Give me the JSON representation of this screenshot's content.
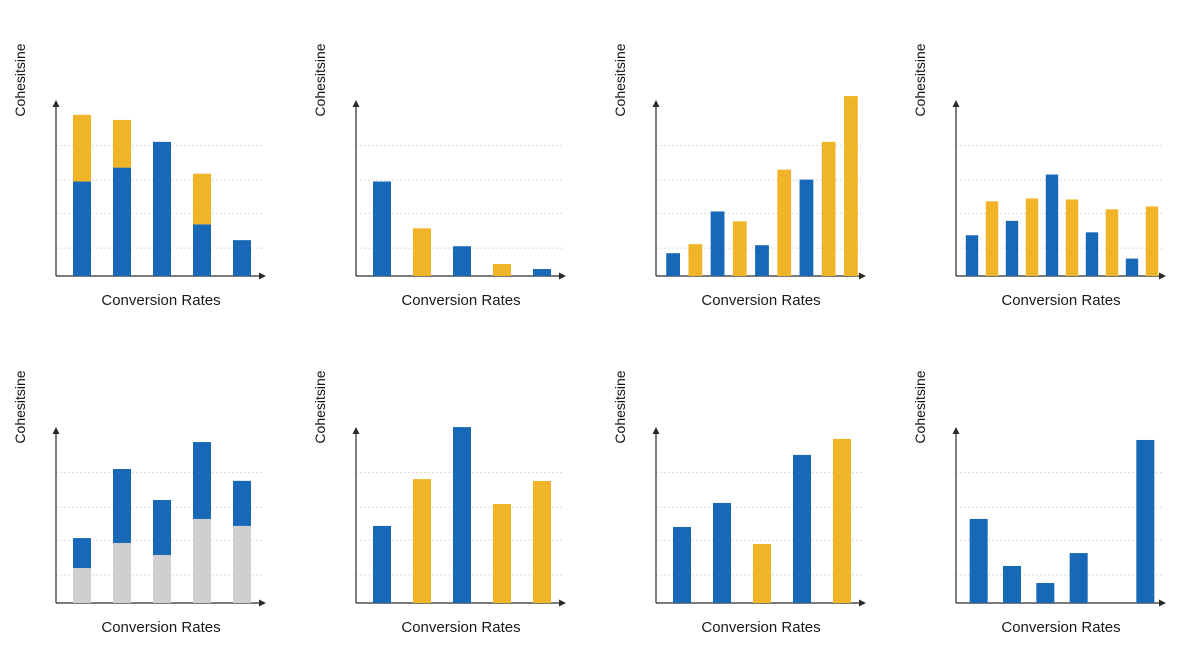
{
  "colors": {
    "blue": "#1768b7",
    "gold": "#f0b429",
    "gray": "#cfcfcf",
    "grid": "#dcdcdc",
    "axis": "#2b2b2b"
  },
  "chart_data": [
    {
      "type": "bar",
      "stacked": true,
      "xlabel": "Conversion Rates",
      "ylabel": "Cohesitsine",
      "ylim": [
        0,
        100
      ],
      "grid": true,
      "series": [
        {
          "color": "blue",
          "values": [
            54.3,
            62.3,
            77.1,
            29.7,
            20.6
          ]
        },
        {
          "color": "gold",
          "values": [
            38.3,
            27.4,
            0,
            29.1,
            0
          ]
        }
      ]
    },
    {
      "type": "bar",
      "xlabel": "Conversion Rates",
      "ylabel": "Cohesitsine",
      "ylim": [
        0,
        100
      ],
      "grid": true,
      "values": [
        54.3,
        27.4,
        17.1,
        6.9,
        4.0
      ],
      "colors": [
        "blue",
        "gold",
        "blue",
        "gold",
        "blue"
      ]
    },
    {
      "type": "bar",
      "xlabel": "Conversion Rates",
      "ylabel": "Cohesitsine",
      "ylim": [
        0,
        100
      ],
      "grid": true,
      "values": [
        13.1,
        18.3,
        37.1,
        31.4,
        17.7,
        61.1,
        55.4,
        77.1,
        103.4
      ],
      "colors": [
        "blue",
        "gold",
        "blue",
        "gold",
        "blue",
        "gold",
        "blue",
        "gold",
        "gold"
      ]
    },
    {
      "type": "bar",
      "xlabel": "Conversion Rates",
      "ylabel": "Cohesitsine",
      "ylim": [
        0,
        100
      ],
      "grid": true,
      "values": [
        23.4,
        42.9,
        31.7,
        44.6,
        58.3,
        44.0,
        25.1,
        38.3,
        10.0,
        40.0
      ],
      "colors": [
        "blue",
        "gold",
        "blue",
        "gold",
        "blue",
        "gold",
        "blue",
        "gold",
        "blue",
        "gold"
      ]
    },
    {
      "type": "bar",
      "stacked": true,
      "xlabel": "Conversion Rates",
      "ylabel": "Cohesitsine",
      "ylim": [
        0,
        100
      ],
      "grid": true,
      "series": [
        {
          "color": "gray",
          "values": [
            20.1,
            34.5,
            27.6,
            48.3,
            44.3
          ]
        },
        {
          "color": "blue",
          "values": [
            17.2,
            42.5,
            31.6,
            44.2,
            25.9
          ]
        }
      ]
    },
    {
      "type": "bar",
      "xlabel": "Conversion Rates",
      "ylabel": "Cohesitsine",
      "ylim": [
        0,
        100
      ],
      "grid": true,
      "values": [
        44.3,
        71.2,
        101.1,
        56.9,
        70.1
      ],
      "colors": [
        "blue",
        "gold",
        "blue",
        "gold",
        "gold"
      ]
    },
    {
      "type": "bar",
      "xlabel": "Conversion Rates",
      "ylabel": "Cohesitsine",
      "ylim": [
        0,
        100
      ],
      "grid": true,
      "values": [
        43.7,
        57.5,
        33.9,
        85.1,
        94.3
      ],
      "colors": [
        "blue",
        "blue",
        "gold",
        "blue",
        "gold"
      ]
    },
    {
      "type": "bar",
      "xlabel": "Conversion Rates",
      "ylabel": "Cohesitsine",
      "ylim": [
        0,
        100
      ],
      "grid": true,
      "values": [
        48.3,
        21.3,
        11.5,
        28.7,
        0,
        93.7
      ],
      "colors": [
        "blue",
        "blue",
        "blue",
        "blue",
        "blue",
        "blue"
      ]
    }
  ]
}
